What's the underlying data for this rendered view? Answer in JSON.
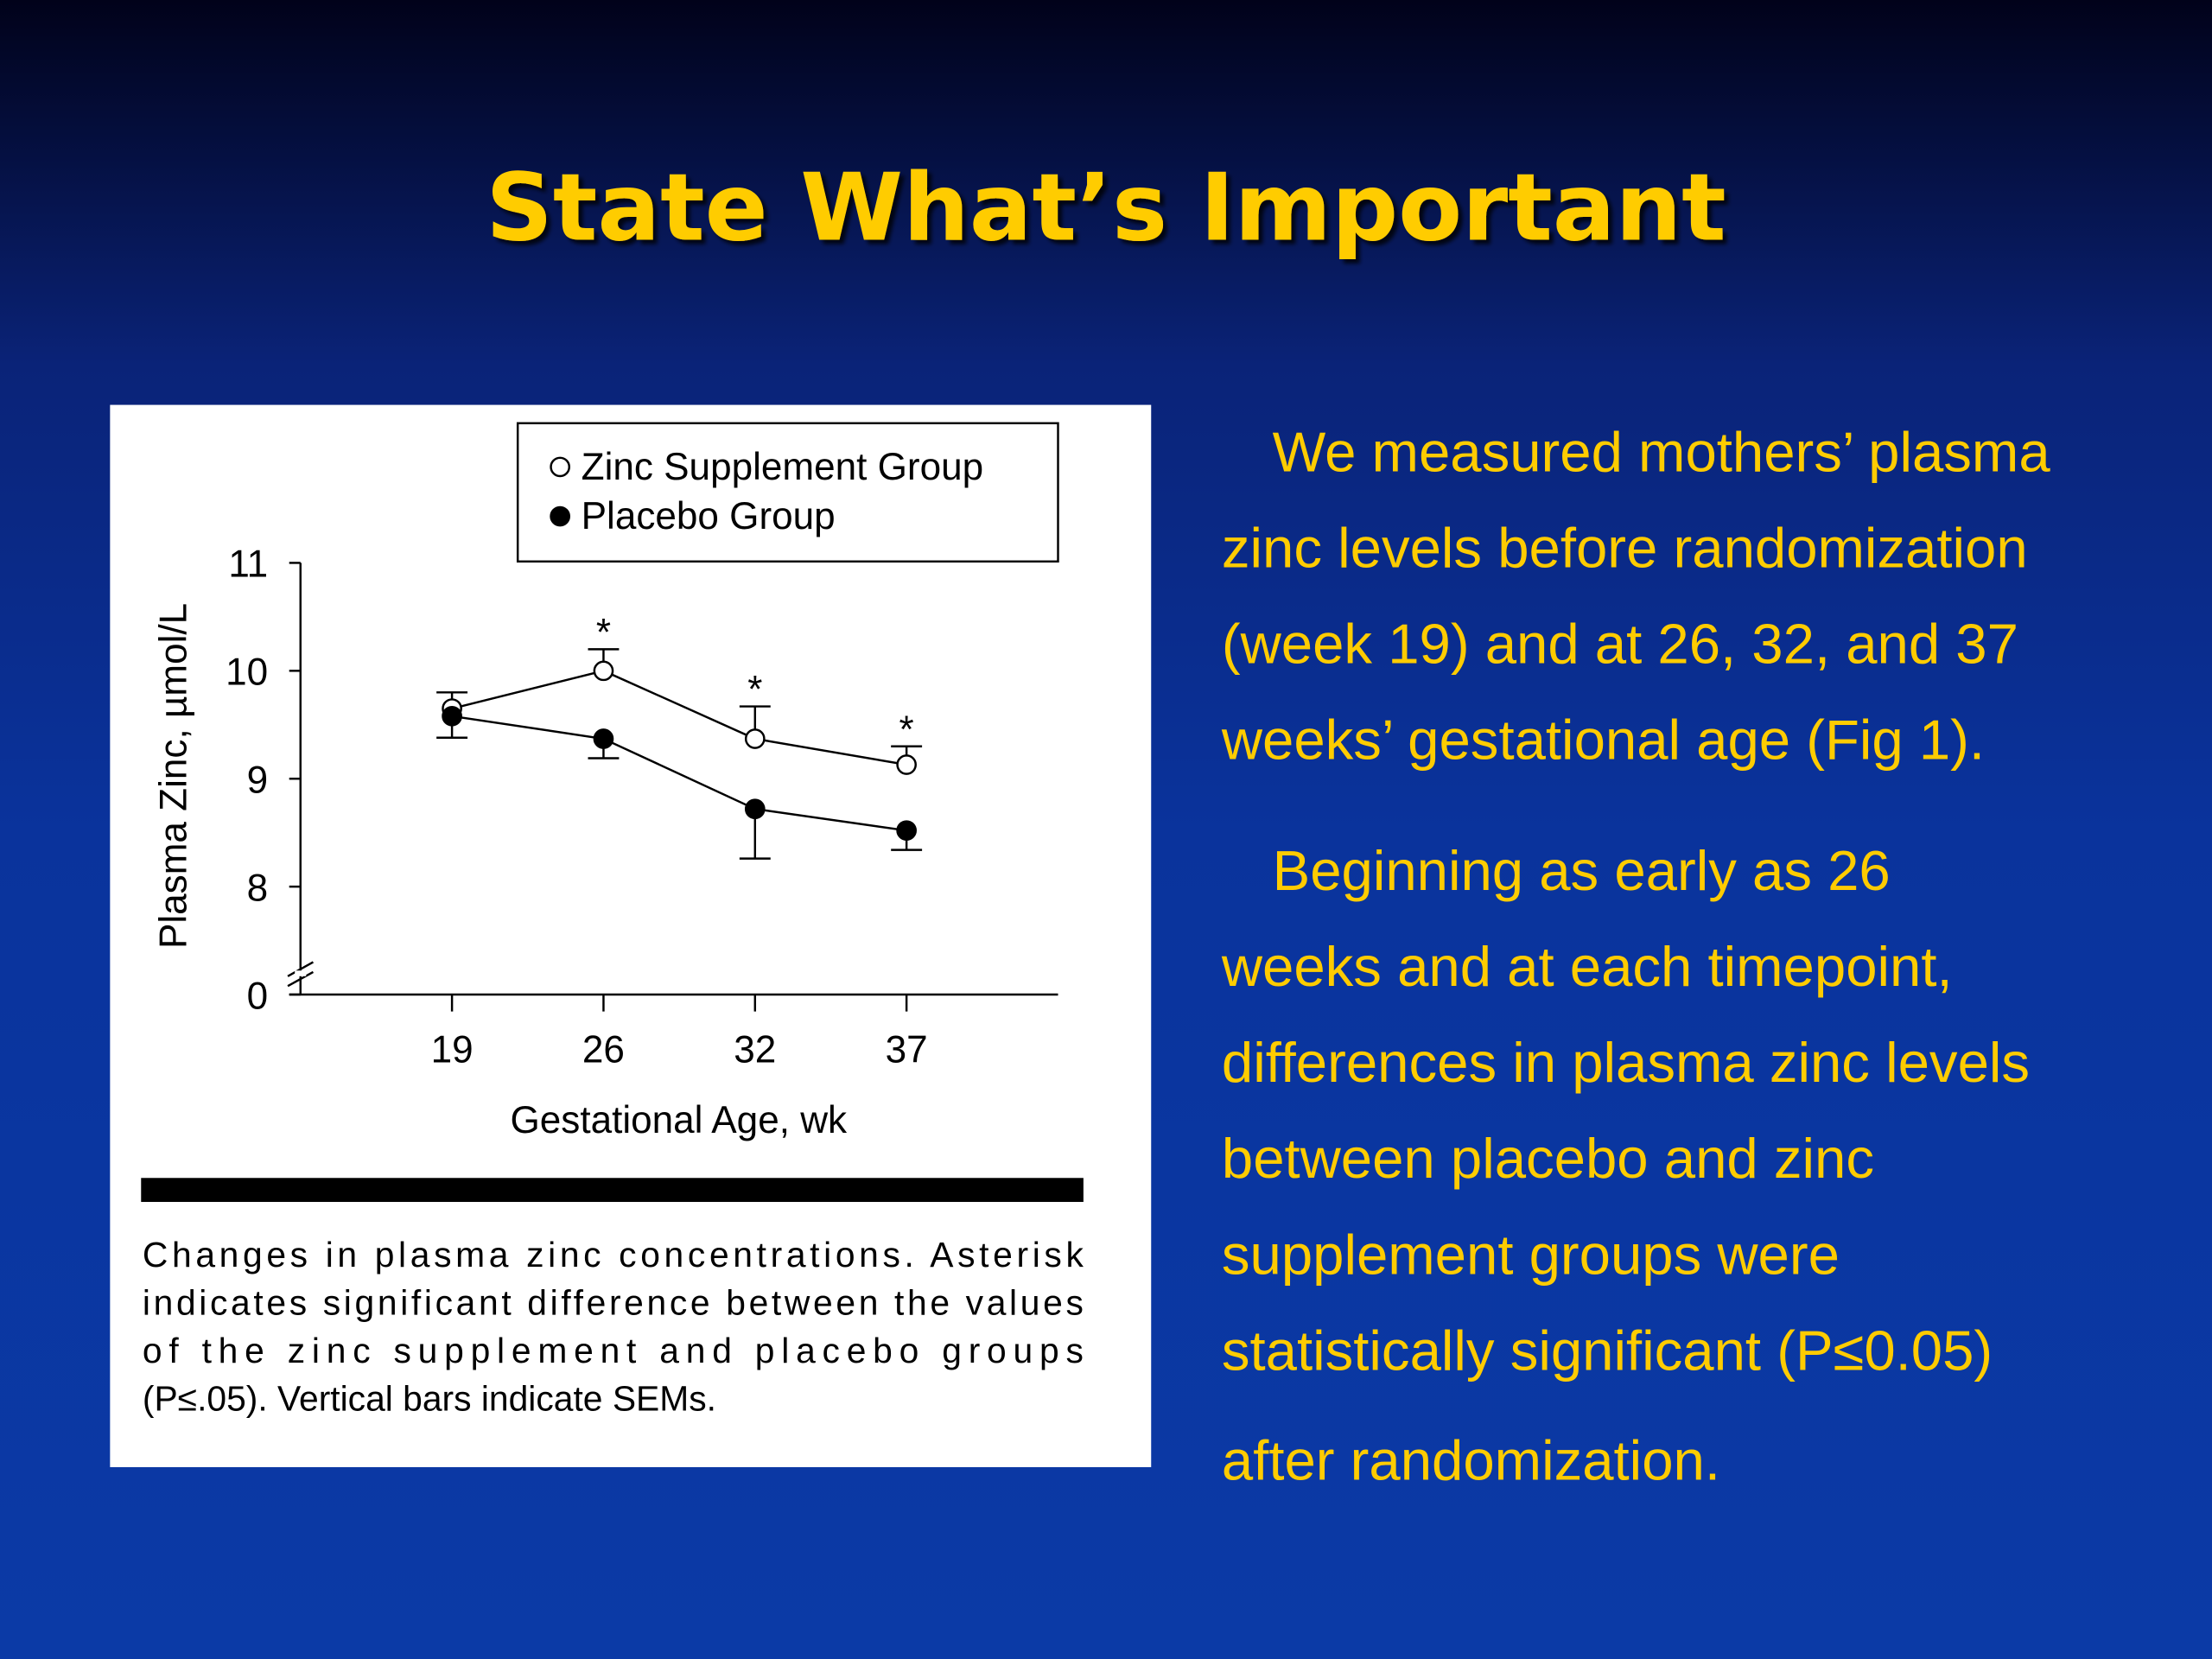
{
  "title": "State What’s Important",
  "chart_data": {
    "type": "line",
    "y_label": "Plasma Zinc, µmol/L",
    "x_label": "Gestational Age, wk",
    "categories": [
      "19",
      "26",
      "32",
      "37"
    ],
    "series": [
      {
        "name": "Zinc Supplement Group",
        "marker": "open",
        "color": "#000000",
        "values": [
          9.65,
          10.0,
          9.37,
          9.13
        ],
        "errors": [
          0.15,
          0.2,
          0.3,
          0.17
        ],
        "error_direction": "up"
      },
      {
        "name": "Placebo Group",
        "marker": "filled",
        "color": "#000000",
        "values": [
          9.58,
          9.37,
          8.72,
          8.52
        ],
        "errors": [
          0.2,
          0.18,
          0.46,
          0.18
        ],
        "error_direction": "down"
      }
    ],
    "annotations": [
      {
        "category": 1,
        "text": "*"
      },
      {
        "category": 2,
        "text": "*"
      },
      {
        "category": 3,
        "text": "*"
      }
    ],
    "ylim": [
      0,
      11
    ],
    "yticks": [
      0,
      8,
      9,
      10,
      11
    ],
    "axis_break": [
      0,
      8
    ],
    "legend": "top-right"
  },
  "caption": [
    "Changes in plasma zinc concentrations. Asterisk",
    "indicates significant difference between the values",
    "of the zinc supplement and placebo groups",
    "(P≤.05). Vertical bars indicate SEMs."
  ],
  "paragraphs": [
    [
      "We measured mothers’ plasma",
      "zinc levels before randomization",
      "(week 19) and at 26, 32, and 37",
      "weeks’ gestational age (Fig 1)."
    ],
    [
      "Beginning as early as 26",
      "weeks and at each timepoint,",
      "differences in plasma zinc levels",
      "between placebo and zinc",
      "supplement groups were",
      "statistically significant (P≤0.05)",
      "after randomization."
    ]
  ]
}
